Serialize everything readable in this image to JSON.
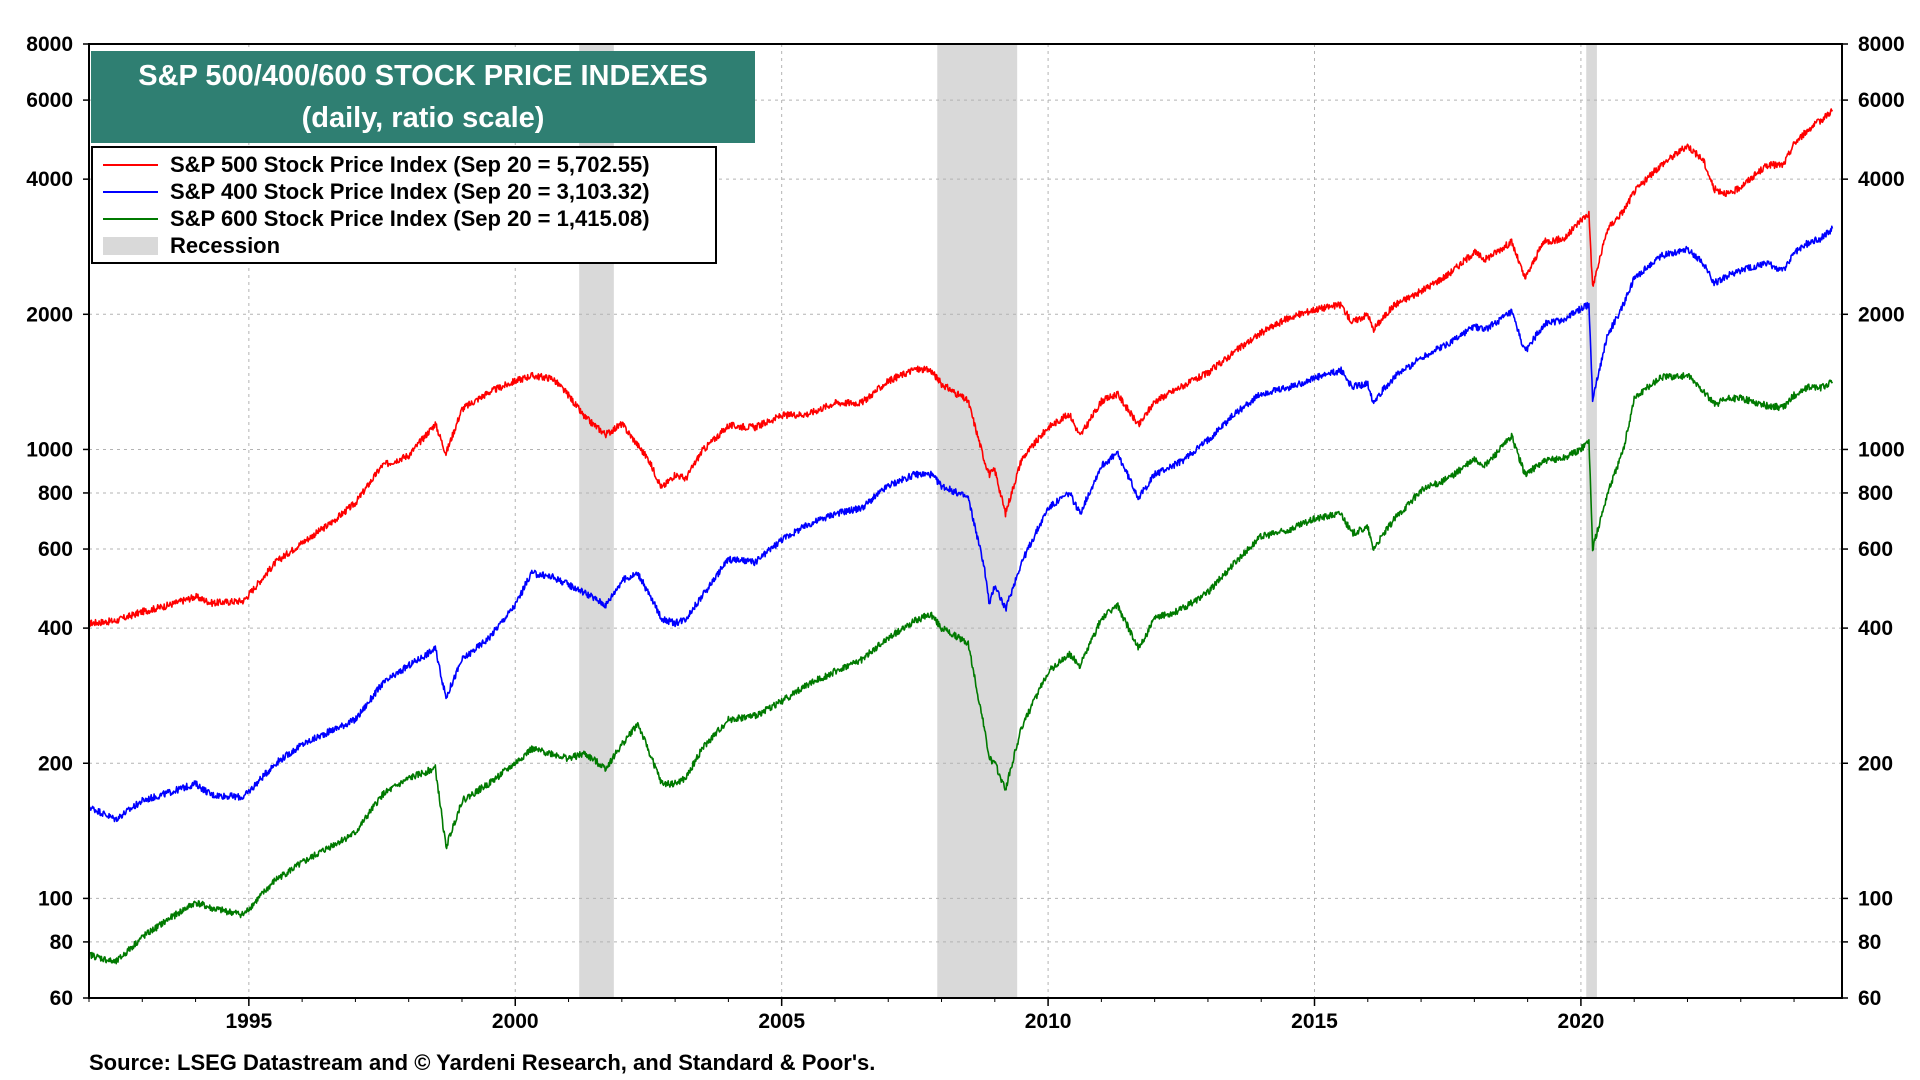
{
  "chart_data": {
    "type": "line",
    "title": "S&P 500/400/600 STOCK PRICE INDEXES",
    "subtitle": "(daily, ratio scale)",
    "scale": "log",
    "xlim": [
      1992.0,
      2024.9
    ],
    "ylim": [
      60,
      8000
    ],
    "x_ticks": [
      1995,
      2000,
      2005,
      2010,
      2015,
      2020
    ],
    "x_tick_labels": [
      "1995",
      "2000",
      "2005",
      "2010",
      "2015",
      "2020"
    ],
    "y_ticks": [
      60,
      80,
      100,
      200,
      400,
      600,
      800,
      1000,
      2000,
      4000,
      6000,
      8000
    ],
    "y_tick_labels": [
      "60",
      "80",
      "100",
      "200",
      "400",
      "600",
      "800",
      "1000",
      "2000",
      "4000",
      "6000",
      "8000"
    ],
    "legend_position": "top-left",
    "recessions": [
      {
        "start": 2001.2,
        "end": 2001.85
      },
      {
        "start": 2007.92,
        "end": 2009.42
      },
      {
        "start": 2020.1,
        "end": 2020.3
      }
    ],
    "recession_label": "Recession",
    "series": [
      {
        "name": "S&P 500 Stock Price Index (Sep 20 = 5,702.55)",
        "color": "#ff0000",
        "x": [
          1992.0,
          1992.5,
          1993.0,
          1993.5,
          1994.0,
          1994.3,
          1994.9,
          1995.5,
          1996.0,
          1996.5,
          1997.0,
          1997.5,
          1998.0,
          1998.5,
          1998.7,
          1999.0,
          1999.5,
          2000.0,
          2000.3,
          2000.7,
          2001.0,
          2001.3,
          2001.7,
          2002.0,
          2002.5,
          2002.75,
          2003.0,
          2003.2,
          2003.5,
          2004.0,
          2004.5,
          2005.0,
          2005.5,
          2006.0,
          2006.5,
          2007.0,
          2007.5,
          2007.8,
          2008.0,
          2008.5,
          2008.8,
          2008.9,
          2009.0,
          2009.2,
          2009.5,
          2010.0,
          2010.4,
          2010.6,
          2011.0,
          2011.3,
          2011.7,
          2012.0,
          2012.5,
          2013.0,
          2013.5,
          2014.0,
          2014.5,
          2015.0,
          2015.5,
          2015.7,
          2016.0,
          2016.1,
          2016.5,
          2017.0,
          2017.5,
          2018.0,
          2018.2,
          2018.7,
          2018.95,
          2019.3,
          2019.7,
          2020.0,
          2020.15,
          2020.22,
          2020.5,
          2020.8,
          2021.0,
          2021.5,
          2022.0,
          2022.3,
          2022.5,
          2022.8,
          2023.0,
          2023.5,
          2023.8,
          2024.0,
          2024.3,
          2024.5,
          2024.72
        ],
        "values": [
          410,
          415,
          435,
          450,
          470,
          455,
          460,
          560,
          620,
          680,
          760,
          920,
          970,
          1140,
          980,
          1230,
          1340,
          1420,
          1460,
          1440,
          1320,
          1180,
          1080,
          1140,
          950,
          820,
          880,
          860,
          990,
          1130,
          1120,
          1190,
          1200,
          1270,
          1270,
          1420,
          1510,
          1500,
          1400,
          1280,
          950,
          880,
          900,
          720,
          950,
          1120,
          1200,
          1070,
          1280,
          1330,
          1130,
          1280,
          1380,
          1480,
          1650,
          1820,
          1960,
          2050,
          2100,
          1920,
          2000,
          1850,
          2100,
          2250,
          2450,
          2750,
          2650,
          2900,
          2400,
          2900,
          2950,
          3250,
          3350,
          2300,
          3100,
          3400,
          3750,
          4300,
          4750,
          4400,
          3800,
          3700,
          3850,
          4300,
          4300,
          4800,
          5200,
          5400,
          5702.55
        ]
      },
      {
        "name": "S&P 400 Stock Price Index (Sep 20 = 3,103.32)",
        "color": "#0000ff",
        "x": [
          1992.0,
          1992.5,
          1993.0,
          1993.5,
          1994.0,
          1994.3,
          1994.9,
          1995.5,
          1996.0,
          1996.5,
          1997.0,
          1997.5,
          1998.0,
          1998.5,
          1998.7,
          1999.0,
          1999.5,
          2000.0,
          2000.3,
          2000.7,
          2001.0,
          2001.3,
          2001.7,
          2002.0,
          2002.3,
          2002.75,
          2003.0,
          2003.2,
          2003.5,
          2004.0,
          2004.5,
          2005.0,
          2005.5,
          2006.0,
          2006.5,
          2007.0,
          2007.5,
          2007.8,
          2008.0,
          2008.5,
          2008.8,
          2008.9,
          2009.0,
          2009.2,
          2009.5,
          2010.0,
          2010.4,
          2010.6,
          2011.0,
          2011.3,
          2011.7,
          2012.0,
          2012.5,
          2013.0,
          2013.5,
          2014.0,
          2014.5,
          2015.0,
          2015.5,
          2015.7,
          2016.0,
          2016.1,
          2016.5,
          2017.0,
          2017.5,
          2018.0,
          2018.2,
          2018.7,
          2018.95,
          2019.3,
          2019.7,
          2020.0,
          2020.15,
          2020.22,
          2020.5,
          2020.8,
          2021.0,
          2021.5,
          2022.0,
          2022.3,
          2022.5,
          2022.8,
          2023.0,
          2023.5,
          2023.8,
          2024.0,
          2024.3,
          2024.5,
          2024.72
        ],
        "values": [
          160,
          150,
          165,
          172,
          180,
          170,
          168,
          200,
          220,
          235,
          250,
          300,
          330,
          360,
          280,
          340,
          380,
          450,
          530,
          520,
          500,
          480,
          450,
          510,
          530,
          420,
          410,
          420,
          470,
          570,
          560,
          630,
          680,
          720,
          740,
          830,
          880,
          880,
          830,
          780,
          550,
          450,
          500,
          440,
          560,
          740,
          800,
          720,
          920,
          980,
          780,
          880,
          940,
          1050,
          1200,
          1330,
          1370,
          1440,
          1500,
          1380,
          1400,
          1280,
          1450,
          1600,
          1720,
          1880,
          1850,
          2020,
          1650,
          1900,
          1950,
          2060,
          2100,
          1300,
          1800,
          2100,
          2400,
          2700,
          2800,
          2600,
          2350,
          2450,
          2500,
          2600,
          2500,
          2750,
          2900,
          2950,
          3103.32
        ]
      },
      {
        "name": "S&P 600 Stock Price Index (Sep 20 = 1,415.08)",
        "color": "#007a00",
        "x": [
          1992.0,
          1992.5,
          1993.0,
          1993.5,
          1994.0,
          1994.3,
          1994.9,
          1995.5,
          1996.0,
          1996.5,
          1997.0,
          1997.5,
          1998.0,
          1998.5,
          1998.7,
          1999.0,
          1999.5,
          2000.0,
          2000.3,
          2000.7,
          2001.0,
          2001.3,
          2001.7,
          2002.0,
          2002.3,
          2002.75,
          2003.0,
          2003.2,
          2003.5,
          2004.0,
          2004.5,
          2005.0,
          2005.5,
          2006.0,
          2006.5,
          2007.0,
          2007.5,
          2007.8,
          2008.0,
          2008.5,
          2008.8,
          2008.9,
          2009.0,
          2009.2,
          2009.5,
          2010.0,
          2010.4,
          2010.6,
          2011.0,
          2011.3,
          2011.7,
          2012.0,
          2012.5,
          2013.0,
          2013.5,
          2014.0,
          2014.5,
          2015.0,
          2015.5,
          2015.7,
          2016.0,
          2016.1,
          2016.5,
          2017.0,
          2017.5,
          2018.0,
          2018.2,
          2018.7,
          2018.95,
          2019.3,
          2019.7,
          2020.0,
          2020.15,
          2020.22,
          2020.5,
          2020.8,
          2021.0,
          2021.5,
          2022.0,
          2022.3,
          2022.5,
          2022.8,
          2023.0,
          2023.5,
          2023.8,
          2024.0,
          2024.3,
          2024.5,
          2024.72
        ],
        "values": [
          75,
          72,
          82,
          90,
          98,
          95,
          92,
          110,
          120,
          130,
          140,
          170,
          185,
          195,
          130,
          165,
          180,
          200,
          215,
          210,
          205,
          210,
          195,
          220,
          245,
          180,
          180,
          185,
          215,
          250,
          255,
          275,
          300,
          320,
          340,
          380,
          415,
          430,
          400,
          370,
          240,
          205,
          200,
          175,
          240,
          320,
          350,
          330,
          420,
          450,
          360,
          420,
          440,
          480,
          560,
          640,
          660,
          700,
          720,
          650,
          670,
          600,
          700,
          810,
          860,
          950,
          920,
          1070,
          880,
          940,
          960,
          1000,
          1050,
          600,
          800,
          1000,
          1300,
          1450,
          1460,
          1350,
          1260,
          1300,
          1300,
          1250,
          1240,
          1320,
          1380,
          1370,
          1415.08
        ]
      }
    ],
    "source": "Source: LSEG Datastream and © Yardeni Research, and Standard & Poor's."
  }
}
